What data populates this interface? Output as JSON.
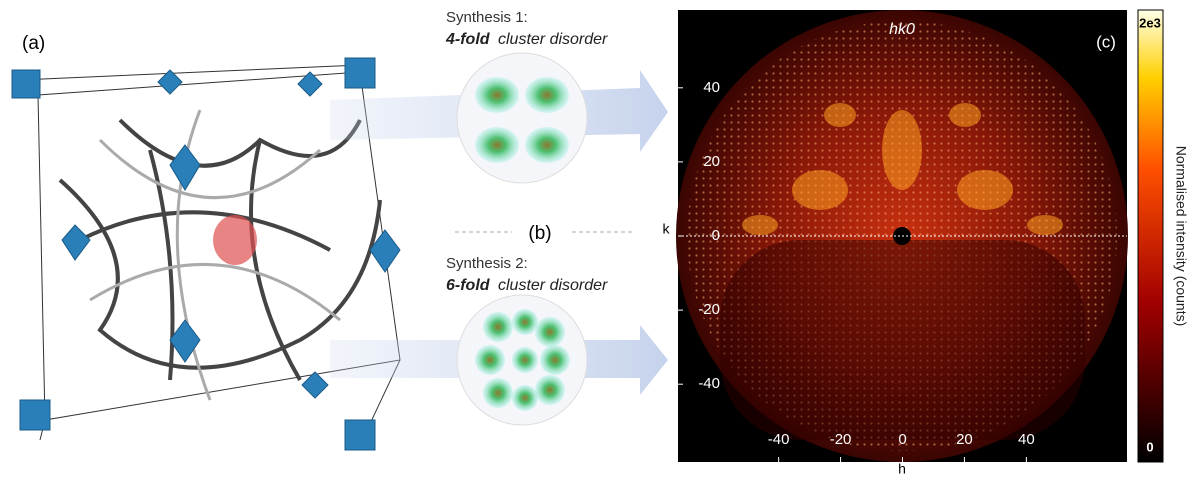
{
  "panel_a": {
    "label": "(a)"
  },
  "panel_b": {
    "label": "(b)",
    "synthesis_1": {
      "title": "Synthesis 1:",
      "emphasis": "4-fold",
      "rest": "cluster disorder"
    },
    "synthesis_2": {
      "title": "Synthesis 2:",
      "emphasis": "6-fold",
      "rest": "cluster disorder"
    }
  },
  "chart_data": {
    "type": "heatmap",
    "title": "hk0",
    "panel_label": "(c)",
    "xlabel": "h",
    "ylabel": "k",
    "xlim": [
      -72.5,
      72.5
    ],
    "ylim": [
      -61,
      61
    ],
    "xticks": [
      -40,
      -20,
      0,
      20,
      40
    ],
    "yticks": [
      -40,
      -20,
      0,
      20,
      40
    ],
    "colorbar": {
      "label": "Normalised intensity (counts)",
      "lim": [
        0,
        2000
      ],
      "ticks": [
        0,
        {
          "value": 2000,
          "label": "2e3"
        }
      ]
    }
  }
}
